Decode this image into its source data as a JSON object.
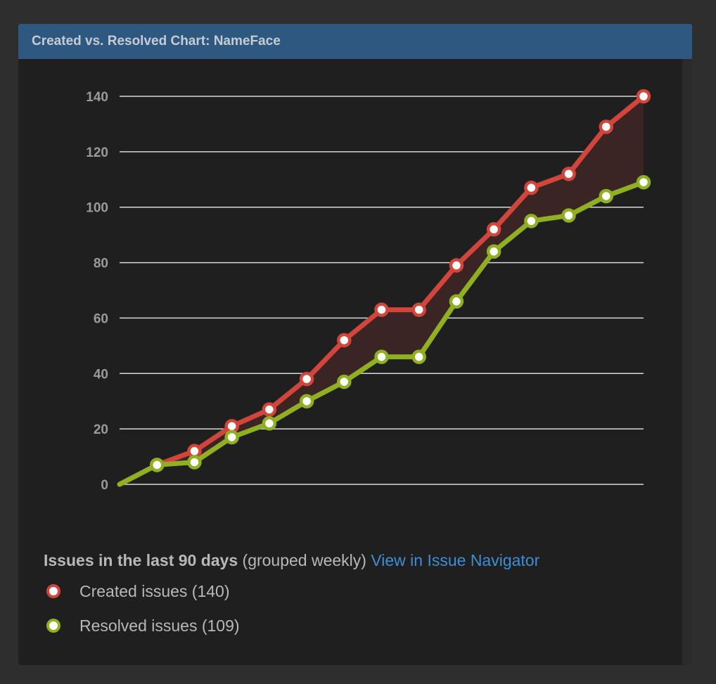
{
  "gadget": {
    "title": "Created vs. Resolved Chart: NameFace"
  },
  "caption": {
    "bold": "Issues in the last 90 days",
    "normal": "(grouped weekly)",
    "link": "View in Issue Navigator"
  },
  "legend": [
    {
      "label": "Created issues (140)",
      "color": "#d1453b"
    },
    {
      "label": "Resolved issues (109)",
      "color": "#8eb021"
    }
  ],
  "chart_data": {
    "type": "line",
    "x": [
      0,
      1,
      2,
      3,
      4,
      5,
      6,
      7,
      8,
      9,
      10,
      11,
      12,
      13,
      14
    ],
    "series": [
      {
        "name": "Created issues (140)",
        "color": "#d1453b",
        "values": [
          0,
          7,
          12,
          21,
          27,
          38,
          52,
          63,
          63,
          79,
          92,
          107,
          112,
          129,
          140
        ]
      },
      {
        "name": "Resolved issues (109)",
        "color": "#8eb021",
        "values": [
          0,
          7,
          8,
          17,
          22,
          30,
          37,
          46,
          46,
          66,
          84,
          95,
          97,
          104,
          109
        ]
      }
    ],
    "ylim": [
      0,
      140
    ],
    "yticks": [
      "0",
      "20",
      "40",
      "60",
      "80",
      "100",
      "120",
      "140"
    ],
    "grid": true,
    "area_between_color": "#3b2424"
  }
}
